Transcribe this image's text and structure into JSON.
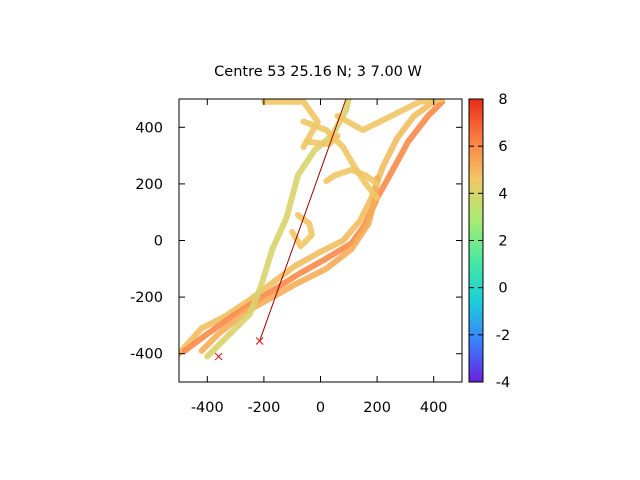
{
  "chart_data": {
    "type": "line",
    "title": "Centre 53 25.16 N; 3 7.00 W",
    "xlabel": "",
    "ylabel": "",
    "xlim": [
      -500,
      500
    ],
    "ylim": [
      -500,
      500
    ],
    "x_ticks": [
      -400,
      -200,
      0,
      200,
      400
    ],
    "y_ticks": [
      -400,
      -200,
      0,
      200,
      400
    ],
    "x_tick_labels": [
      "-400",
      "-200",
      "0",
      "200",
      "400"
    ],
    "y_tick_labels": [
      "-400",
      "-200",
      "0",
      "200",
      "400"
    ],
    "grid": false,
    "colorbar": {
      "min": -4,
      "max": 8,
      "ticks": [
        8,
        6,
        4,
        2,
        0,
        -2,
        -4
      ],
      "tick_labels": [
        "8",
        "6",
        "4",
        "2",
        "0",
        "-2",
        "-4"
      ],
      "palette": [
        "#6a1fe0",
        "#3a80ff",
        "#1ccfd8",
        "#4ae8a0",
        "#a6ec72",
        "#f1c866",
        "#fb7f43",
        "#ea2b16"
      ]
    },
    "tracks": [
      {
        "color_value": 4.8,
        "points": [
          [
            -500,
            -400
          ],
          [
            -420,
            -310
          ],
          [
            -340,
            -270
          ],
          [
            -250,
            -210
          ],
          [
            -170,
            -150
          ],
          [
            -90,
            -90
          ],
          [
            0,
            -40
          ],
          [
            80,
            0
          ],
          [
            140,
            70
          ],
          [
            180,
            150
          ],
          [
            220,
            260
          ],
          [
            270,
            360
          ],
          [
            330,
            440
          ],
          [
            400,
            490
          ]
        ]
      },
      {
        "color_value": 6.0,
        "points": [
          [
            -480,
            -390
          ],
          [
            -400,
            -330
          ],
          [
            -300,
            -260
          ],
          [
            -190,
            -190
          ],
          [
            -80,
            -120
          ],
          [
            10,
            -70
          ],
          [
            110,
            -10
          ],
          [
            160,
            60
          ],
          [
            200,
            150
          ],
          [
            250,
            240
          ],
          [
            310,
            350
          ],
          [
            380,
            440
          ],
          [
            430,
            490
          ]
        ]
      },
      {
        "color_value": 5.2,
        "points": [
          [
            -420,
            -390
          ],
          [
            -360,
            -330
          ],
          [
            -260,
            -250
          ],
          [
            -170,
            -200
          ],
          [
            -80,
            -150
          ],
          [
            20,
            -100
          ],
          [
            110,
            -30
          ],
          [
            170,
            60
          ],
          [
            190,
            140
          ],
          [
            200,
            220
          ]
        ]
      },
      {
        "color_value": 4.0,
        "points": [
          [
            -400,
            -410
          ],
          [
            -350,
            -360
          ],
          [
            -250,
            -260
          ],
          [
            -210,
            -160
          ],
          [
            -170,
            -30
          ],
          [
            -120,
            80
          ],
          [
            -80,
            230
          ],
          [
            -20,
            320
          ],
          [
            40,
            370
          ],
          [
            90,
            460
          ],
          [
            100,
            500
          ]
        ]
      },
      {
        "color_value": 4.6,
        "points": [
          [
            -100,
            30
          ],
          [
            -70,
            -20
          ],
          [
            -30,
            20
          ],
          [
            -40,
            60
          ],
          [
            -80,
            90
          ]
        ]
      },
      {
        "color_value": 4.6,
        "points": [
          [
            -60,
            330
          ],
          [
            -10,
            420
          ],
          [
            -60,
            490
          ],
          [
            -200,
            490
          ]
        ]
      },
      {
        "color_value": 4.6,
        "points": [
          [
            -60,
            420
          ],
          [
            20,
            390
          ],
          [
            80,
            330
          ],
          [
            120,
            260
          ],
          [
            160,
            200
          ],
          [
            200,
            150
          ]
        ]
      },
      {
        "color_value": 4.6,
        "points": [
          [
            60,
            440
          ],
          [
            150,
            390
          ],
          [
            250,
            440
          ],
          [
            350,
            490
          ],
          [
            430,
            500
          ]
        ]
      },
      {
        "color_value": 4.6,
        "points": [
          [
            20,
            210
          ],
          [
            50,
            230
          ],
          [
            110,
            250
          ],
          [
            160,
            230
          ],
          [
            200,
            200
          ]
        ]
      },
      {
        "color_value": 4.6,
        "points": [
          [
            -50,
            350
          ],
          [
            30,
            340
          ],
          [
            60,
            370
          ]
        ]
      }
    ],
    "line": {
      "color": "#a00000",
      "x": [
        -215,
        90
      ],
      "y": [
        -355,
        500
      ]
    },
    "markers": [
      {
        "symbol": "x",
        "color": "#e01010",
        "x": -360,
        "y": -410
      },
      {
        "symbol": "x",
        "color": "#e01010",
        "x": -215,
        "y": -355
      }
    ]
  }
}
